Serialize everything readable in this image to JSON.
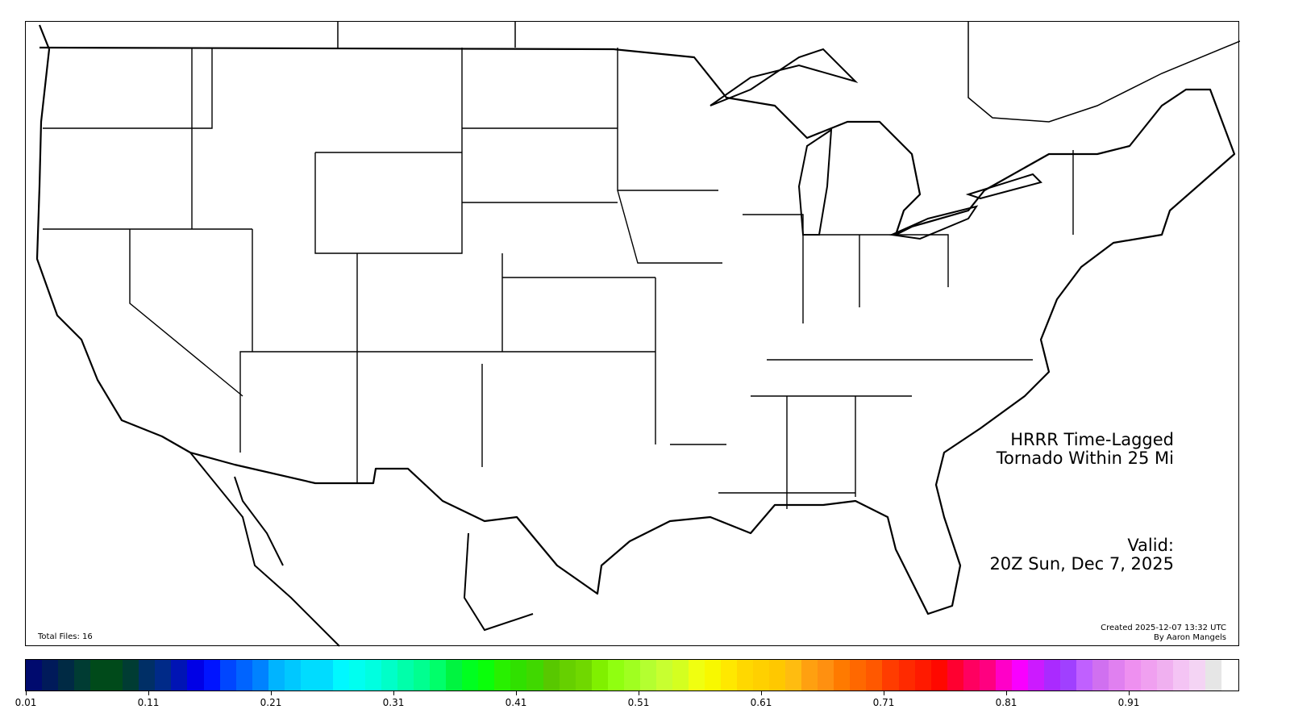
{
  "map": {
    "title_line1": "HRRR Time-Lagged",
    "title_line2": "Tornado Within 25 Mi",
    "valid_label": "Valid:",
    "valid_time": "20Z Sun, Dec 7, 2025",
    "total_files": "Total Files: 16",
    "created": "Created 2025-12-07 13:32 UTC",
    "author": "By Aaron Mangels"
  },
  "colorbar": {
    "tick_labels": [
      "0.01",
      "0.11",
      "0.21",
      "0.31",
      "0.41",
      "0.51",
      "0.61",
      "0.71",
      "0.81",
      "0.91"
    ],
    "colors": [
      "#000a6e",
      "#001a5a",
      "#002a44",
      "#003c33",
      "#004a1a",
      "#004a1a",
      "#003c33",
      "#002f66",
      "#002a88",
      "#0014b4",
      "#0000e6",
      "#0014ff",
      "#0046ff",
      "#0064ff",
      "#0082ff",
      "#00b4ff",
      "#00c8ff",
      "#00dcff",
      "#00dcff",
      "#00f8ff",
      "#00fff0",
      "#00ffe0",
      "#00ffc8",
      "#00ffaa",
      "#00ff90",
      "#00ff6a",
      "#00f440",
      "#00ff20",
      "#0aff0a",
      "#28f000",
      "#30e000",
      "#40d800",
      "#58c800",
      "#66d000",
      "#70d800",
      "#80f000",
      "#90ff10",
      "#a0ff20",
      "#b4ff30",
      "#c8ff30",
      "#d4ff20",
      "#f0ff10",
      "#f8f800",
      "#ffe800",
      "#ffd800",
      "#ffd000",
      "#ffc800",
      "#ffbc10",
      "#ffa010",
      "#ff9010",
      "#ff7a00",
      "#ff6800",
      "#ff5800",
      "#ff3c00",
      "#ff2a00",
      "#ff1a00",
      "#ff0800",
      "#ff0030",
      "#ff0060",
      "#ff0080",
      "#ff00c8",
      "#f800ff",
      "#cc1aff",
      "#aa2aff",
      "#a040ff",
      "#c060ff",
      "#d070f0",
      "#e080f0",
      "#ee90f0",
      "#f0a0f0",
      "#f0b0f0",
      "#f4c4f4",
      "#f4d4f4",
      "#e6e6e6",
      "#ffffff"
    ]
  }
}
